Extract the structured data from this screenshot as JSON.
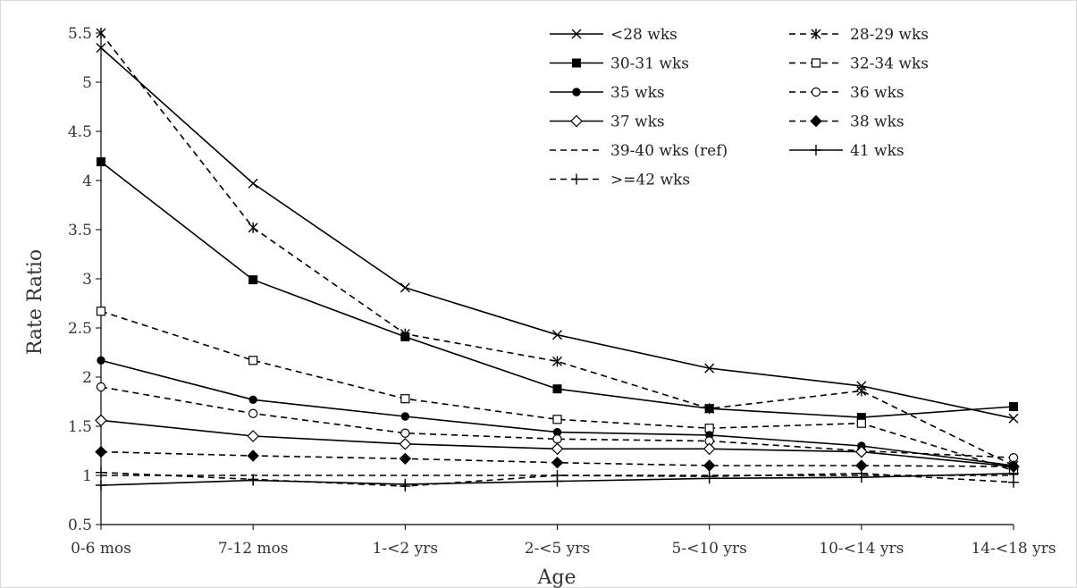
{
  "chart_data": {
    "type": "line",
    "title": "",
    "xlabel": "Age",
    "ylabel": "Rate Ratio",
    "categories": [
      "0-6 mos",
      "7-12 mos",
      "1-<2 yrs",
      "2-<5 yrs",
      "5-<10 yrs",
      "10-<14 yrs",
      "14-<18 yrs"
    ],
    "ylim": [
      0.5,
      5.5
    ],
    "yticks": [
      "0.5",
      "1",
      "1.5",
      "2",
      "2.5",
      "3",
      "3.5",
      "4",
      "4.5",
      "5",
      "5.5"
    ],
    "grid": false,
    "legend_position": "top-right",
    "series": [
      {
        "name": "<28 wks",
        "marker": "x",
        "dashed": false,
        "values": [
          5.35,
          3.97,
          2.91,
          2.43,
          2.09,
          1.91,
          1.58
        ]
      },
      {
        "name": "28-29 wks",
        "marker": "asterisk",
        "dashed": true,
        "values": [
          5.5,
          3.52,
          2.44,
          2.16,
          1.68,
          1.86,
          1.1
        ]
      },
      {
        "name": "30-31 wks",
        "marker": "filled-square",
        "dashed": false,
        "values": [
          4.19,
          2.99,
          2.41,
          1.88,
          1.68,
          1.59,
          1.7
        ]
      },
      {
        "name": "32-34 wks",
        "marker": "open-square",
        "dashed": true,
        "values": [
          2.67,
          2.17,
          1.78,
          1.57,
          1.48,
          1.53,
          1.05
        ]
      },
      {
        "name": "35 wks",
        "marker": "filled-circle",
        "dashed": false,
        "values": [
          2.17,
          1.77,
          1.6,
          1.44,
          1.41,
          1.3,
          1.1
        ]
      },
      {
        "name": "36 wks",
        "marker": "open-circle",
        "dashed": true,
        "values": [
          1.9,
          1.63,
          1.43,
          1.37,
          1.35,
          1.25,
          1.18
        ]
      },
      {
        "name": "37 wks",
        "marker": "open-diamond",
        "dashed": false,
        "values": [
          1.56,
          1.4,
          1.32,
          1.27,
          1.27,
          1.24,
          1.09
        ]
      },
      {
        "name": "38 wks",
        "marker": "filled-diamond",
        "dashed": true,
        "values": [
          1.24,
          1.2,
          1.17,
          1.13,
          1.1,
          1.1,
          1.09
        ]
      },
      {
        "name": "39-40 wks (ref)",
        "marker": "none",
        "dashed": true,
        "values": [
          1.0,
          1.0,
          1.0,
          1.0,
          1.0,
          1.0,
          1.0
        ]
      },
      {
        "name": "41 wks",
        "marker": "plus",
        "dashed": false,
        "values": [
          0.9,
          0.95,
          0.91,
          0.94,
          0.97,
          0.98,
          1.02
        ]
      },
      {
        "name": ">=42 wks",
        "marker": "plus",
        "dashed": true,
        "values": [
          1.03,
          0.96,
          0.89,
          1.0,
          0.99,
          1.02,
          0.93
        ]
      }
    ]
  }
}
